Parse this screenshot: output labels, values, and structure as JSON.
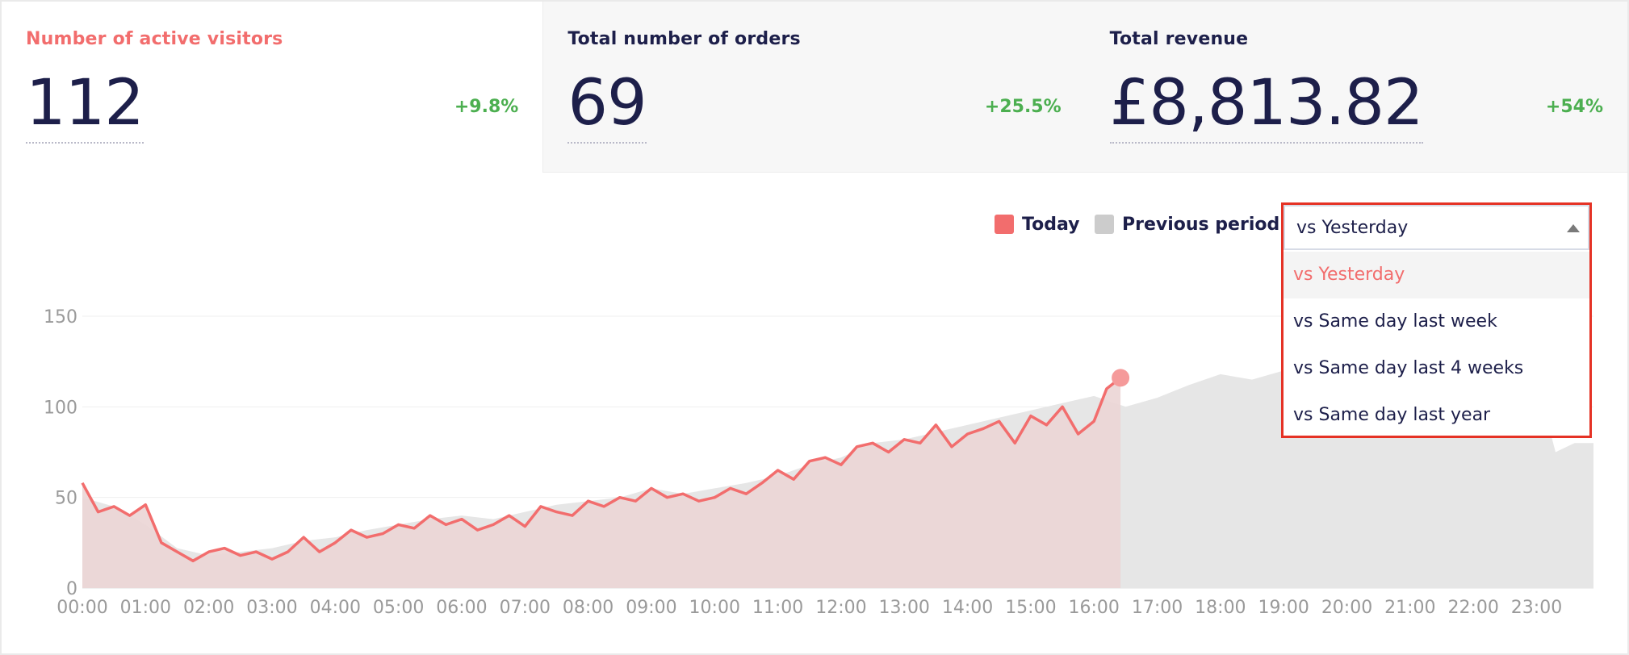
{
  "kpis": [
    {
      "label": "Number of active visitors",
      "value": "112",
      "change": "+9.8%"
    },
    {
      "label": "Total number of orders",
      "value": "69",
      "change": "+25.5%"
    },
    {
      "label": "Total revenue",
      "value": "£8,813.82",
      "change": "+54%"
    }
  ],
  "legend": {
    "today": "Today",
    "previous": "Previous period"
  },
  "comparison": {
    "selected": "vs Yesterday",
    "options": [
      "vs Yesterday",
      "vs Same day last week",
      "vs Same day last 4 weeks",
      "vs Same day last year"
    ]
  },
  "colors": {
    "today": "#f26d6d",
    "today_fill": "#ecd6d6",
    "previous_fill": "#e6e6e6",
    "legend_previous": "#cccccc",
    "positive_change": "#4caf50",
    "dropdown_highlight": "#e53225"
  },
  "chart_data": {
    "type": "area",
    "x_unit": "hour of day",
    "yticks": [
      0,
      50,
      100,
      150
    ],
    "ylim": [
      0,
      150
    ],
    "xlim": [
      0,
      23.9
    ],
    "xtick_values": [
      0,
      1,
      2,
      3,
      4,
      5,
      6,
      7,
      8,
      9,
      10,
      11,
      12,
      13,
      14,
      15,
      16,
      17,
      18,
      19,
      20,
      21,
      22,
      23
    ],
    "xtick_labels": [
      "00:00",
      "01:00",
      "02:00",
      "03:00",
      "04:00",
      "05:00",
      "06:00",
      "07:00",
      "08:00",
      "09:00",
      "10:00",
      "11:00",
      "12:00",
      "13:00",
      "14:00",
      "15:00",
      "16:00",
      "17:00",
      "18:00",
      "19:00",
      "20:00",
      "21:00",
      "22:00",
      "23:00"
    ],
    "series": [
      {
        "name": "Today",
        "x": [
          0,
          0.25,
          0.5,
          0.75,
          1,
          1.25,
          1.5,
          1.75,
          2,
          2.25,
          2.5,
          2.75,
          3,
          3.25,
          3.5,
          3.75,
          4,
          4.25,
          4.5,
          4.75,
          5,
          5.25,
          5.5,
          5.75,
          6,
          6.25,
          6.5,
          6.75,
          7,
          7.25,
          7.5,
          7.75,
          8,
          8.25,
          8.5,
          8.75,
          9,
          9.25,
          9.5,
          9.75,
          10,
          10.25,
          10.5,
          10.75,
          11,
          11.25,
          11.5,
          11.75,
          12,
          12.25,
          12.5,
          12.75,
          13,
          13.25,
          13.5,
          13.75,
          14,
          14.25,
          14.5,
          14.75,
          15,
          15.25,
          15.5,
          15.75,
          16,
          16.2,
          16.42
        ],
        "values": [
          58,
          42,
          45,
          40,
          46,
          25,
          20,
          15,
          20,
          22,
          18,
          20,
          16,
          20,
          28,
          20,
          25,
          32,
          28,
          30,
          35,
          33,
          40,
          35,
          38,
          32,
          35,
          40,
          34,
          45,
          42,
          40,
          48,
          45,
          50,
          48,
          55,
          50,
          52,
          48,
          50,
          55,
          52,
          58,
          65,
          60,
          70,
          72,
          68,
          78,
          80,
          75,
          82,
          80,
          90,
          78,
          85,
          88,
          92,
          80,
          95,
          90,
          100,
          85,
          92,
          110,
          116
        ]
      },
      {
        "name": "Previous period",
        "x": [
          0,
          0.5,
          1,
          1.5,
          2,
          2.5,
          3,
          3.5,
          4,
          4.5,
          5,
          5.5,
          6,
          6.5,
          7,
          7.5,
          8,
          8.5,
          9,
          9.5,
          10,
          10.5,
          11,
          11.5,
          12,
          12.5,
          13,
          13.5,
          14,
          14.5,
          15,
          15.5,
          16,
          16.5,
          17,
          17.5,
          18,
          18.5,
          19,
          19.5,
          20,
          20.5,
          21,
          21.5,
          22,
          22.5,
          23,
          23.3,
          23.6,
          23.9
        ],
        "values": [
          50,
          45,
          35,
          22,
          18,
          20,
          22,
          26,
          28,
          32,
          35,
          38,
          40,
          38,
          42,
          46,
          48,
          50,
          55,
          52,
          55,
          58,
          62,
          68,
          72,
          80,
          82,
          86,
          90,
          94,
          98,
          102,
          106,
          100,
          105,
          112,
          118,
          115,
          120,
          118,
          116,
          112,
          118,
          114,
          110,
          114,
          115,
          75,
          80,
          80
        ]
      }
    ],
    "marker": {
      "x": 16.42,
      "y": 116
    }
  }
}
